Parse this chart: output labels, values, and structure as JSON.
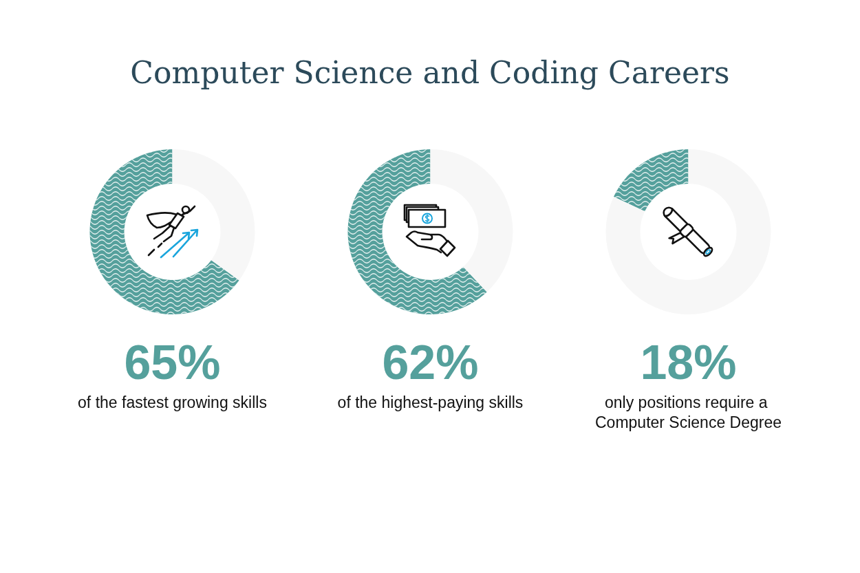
{
  "chart_data": [
    {
      "type": "other",
      "title": "Computer Science and Coding Careers"
    },
    {
      "type": "donut",
      "categories": [
        null,
        null
      ],
      "values": [
        65,
        35
      ],
      "colors": [
        "#55a09c",
        "#f7f7f7"
      ],
      "annotations": [
        "65%",
        "of the fastest growing skills"
      ]
    },
    {
      "type": "donut",
      "categories": [
        null,
        null
      ],
      "values": [
        62,
        38
      ],
      "colors": [
        "#55a09c",
        "#f7f7f7"
      ],
      "annotations": [
        "62%",
        "of the highest-paying skills"
      ]
    },
    {
      "type": "donut",
      "categories": [
        null,
        null
      ],
      "values": [
        18,
        82
      ],
      "colors": [
        "#55a09c",
        "#f7f7f7"
      ],
      "annotations": [
        "18%",
        "only positions require a Computer Science Degree"
      ]
    }
  ]
}
